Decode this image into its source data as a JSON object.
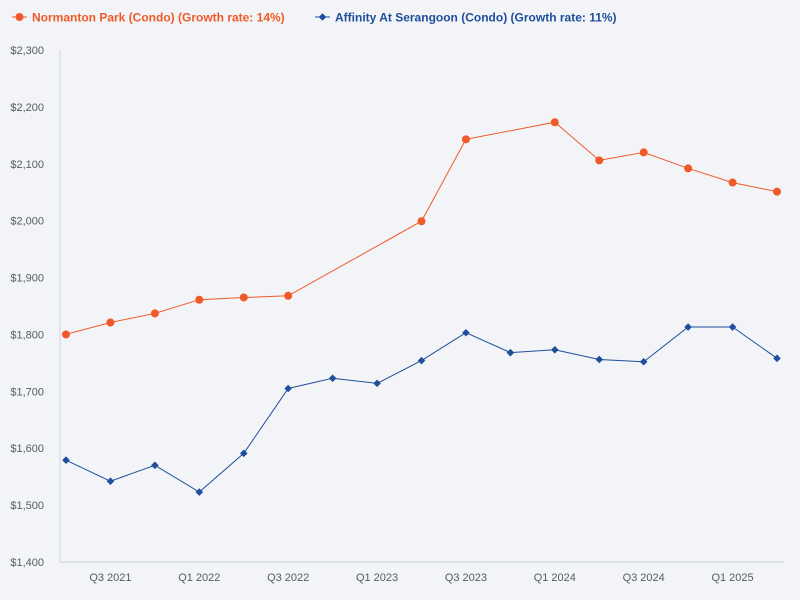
{
  "chart_data": {
    "type": "line",
    "title": "",
    "xlabel": "",
    "ylabel": "",
    "ylim": [
      1400,
      2300
    ],
    "y_ticks": [
      "$1,400",
      "$1,500",
      "$1,600",
      "$1,700",
      "$1,800",
      "$1,900",
      "$2,000",
      "$2,100",
      "$2,200",
      "$2,300"
    ],
    "y_tick_values": [
      1400,
      1500,
      1600,
      1700,
      1800,
      1900,
      2000,
      2100,
      2200,
      2300
    ],
    "x_ticks": [
      "Q3 2021",
      "Q1 2022",
      "Q3 2022",
      "Q1 2023",
      "Q3 2023",
      "Q1 2024",
      "Q3 2024",
      "Q1 2025"
    ],
    "x_tick_positions": [
      1,
      3,
      5,
      7,
      9,
      11,
      13,
      15
    ],
    "x_count": 16,
    "grid": false,
    "legend_position": "top-left",
    "series": [
      {
        "name": "Normanton Park (Condo) (Growth rate: 14%)",
        "color": "#f05a28",
        "marker": "circle",
        "points": [
          [
            0,
            1800
          ],
          [
            1,
            1821
          ],
          [
            2,
            1837
          ],
          [
            3,
            1861
          ],
          [
            4,
            1865
          ],
          [
            5,
            1868
          ],
          [
            8,
            1999
          ],
          [
            9,
            2143
          ],
          [
            11,
            2173
          ],
          [
            12,
            2106
          ],
          [
            13,
            2120
          ],
          [
            14,
            2092
          ],
          [
            15,
            2067
          ],
          [
            16,
            2051
          ]
        ]
      },
      {
        "name": "Affinity At Serangoon (Condo) (Growth rate: 11%)",
        "color": "#1f4e9c",
        "marker": "diamond",
        "points": [
          [
            0,
            1579
          ],
          [
            1,
            1542
          ],
          [
            2,
            1570
          ],
          [
            3,
            1523
          ],
          [
            4,
            1591
          ],
          [
            5,
            1705
          ],
          [
            6,
            1723
          ],
          [
            7,
            1714
          ],
          [
            8,
            1754
          ],
          [
            9,
            1803
          ],
          [
            10,
            1768
          ],
          [
            11,
            1773
          ],
          [
            12,
            1756
          ],
          [
            13,
            1752
          ],
          [
            14,
            1813
          ],
          [
            15,
            1813
          ],
          [
            16,
            1758
          ]
        ]
      }
    ]
  }
}
